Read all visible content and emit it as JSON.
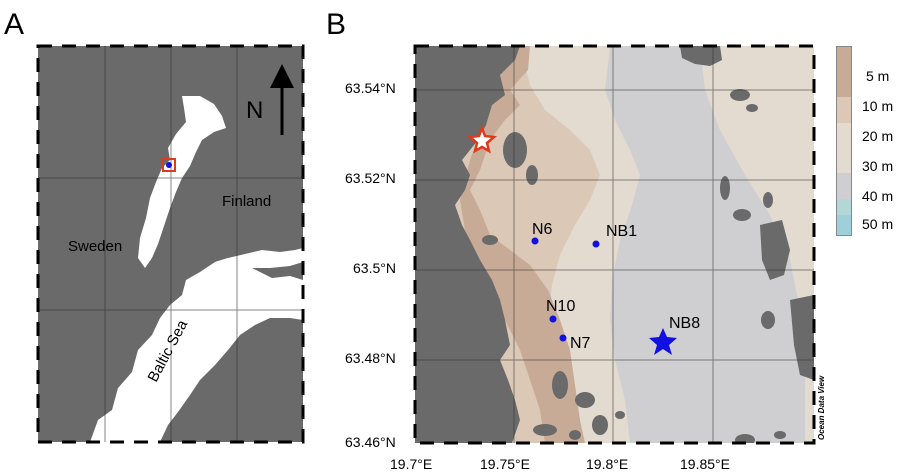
{
  "panel_a": {
    "letter": "A",
    "north_label": "N",
    "country_labels": [
      "Finland",
      "Sweden"
    ],
    "sea_label": "Baltic Sea"
  },
  "panel_b": {
    "letter": "B",
    "lat_ticks": [
      "63.54°N",
      "63.52°N",
      "63.5°N",
      "63.48°N",
      "63.46°N"
    ],
    "lon_ticks": [
      "19.7°E",
      "19.75°E",
      "19.8°E",
      "19.85°E"
    ],
    "stations": [
      {
        "name": "N6",
        "lon": 19.757,
        "lat": 63.506,
        "marker": "dot"
      },
      {
        "name": "NB1",
        "lon": 19.79,
        "lat": 63.506,
        "marker": "dot"
      },
      {
        "name": "N10",
        "lon": 19.765,
        "lat": 63.489,
        "marker": "dot"
      },
      {
        "name": "N7",
        "lon": 19.77,
        "lat": 63.485,
        "marker": "dot"
      },
      {
        "name": "NB8",
        "lon": 19.828,
        "lat": 63.485,
        "marker": "star"
      }
    ],
    "river_mouth_marker": {
      "lon": 19.715,
      "lat": 63.529,
      "marker": "star-outline"
    },
    "credit": "Ocean Data View"
  },
  "legend": {
    "items": [
      {
        "label": "5 m",
        "color": "#c8ab96"
      },
      {
        "label": "10 m",
        "color": "#dcc8b6"
      },
      {
        "label": "20 m",
        "color": "#e3dbd0"
      },
      {
        "label": "30 m",
        "color": "#cfcfd1"
      },
      {
        "label": "40 m",
        "color": "#b2d7d6"
      },
      {
        "label": "50 m",
        "color": "#9fcfd9"
      }
    ]
  },
  "colors": {
    "land": "#6a6a6a",
    "sea_a": "#ffffff",
    "station_blue": "#1010e0",
    "marker_red": "#e03a1c"
  }
}
